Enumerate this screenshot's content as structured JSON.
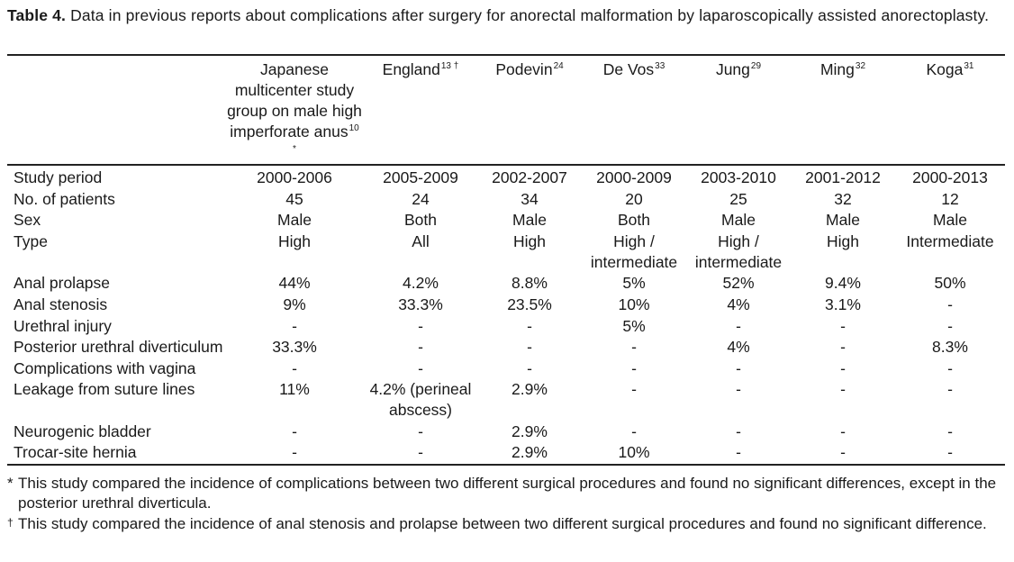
{
  "caption": {
    "label": "Table 4.",
    "text": "Data in previous reports about complications after surgery for anorectal malformation by laparoscopically assisted anorectoplasty."
  },
  "columns": [
    {
      "name": "Japanese multicenter study group on male high imperforate anus",
      "ref": "10 *"
    },
    {
      "name": "England",
      "ref": "13 †"
    },
    {
      "name": "Podevin",
      "ref": "24"
    },
    {
      "name": "De Vos",
      "ref": "33"
    },
    {
      "name": "Jung",
      "ref": "29"
    },
    {
      "name": "Ming",
      "ref": "32"
    },
    {
      "name": "Koga",
      "ref": "31"
    }
  ],
  "rows": [
    {
      "label": "Study period",
      "cells": [
        "2000-2006",
        "2005-2009",
        "2002-2007",
        "2000-2009",
        "2003-2010",
        "2001-2012",
        "2000-2013"
      ]
    },
    {
      "label": "No. of patients",
      "cells": [
        "45",
        "24",
        "34",
        "20",
        "25",
        "32",
        "12"
      ]
    },
    {
      "label": "Sex",
      "cells": [
        "Male",
        "Both",
        "Male",
        "Both",
        "Male",
        "Male",
        "Male"
      ]
    },
    {
      "label": "Type",
      "cells": [
        "High",
        "All",
        "High",
        "High / intermediate",
        "High / intermediate",
        "High",
        "Intermediate"
      ]
    },
    {
      "label": "Anal prolapse",
      "cells": [
        "44%",
        "4.2%",
        "8.8%",
        "5%",
        "52%",
        "9.4%",
        "50%"
      ]
    },
    {
      "label": "Anal stenosis",
      "cells": [
        "9%",
        "33.3%",
        "23.5%",
        "10%",
        "4%",
        "3.1%",
        "-"
      ]
    },
    {
      "label": "Urethral injury",
      "cells": [
        "-",
        "-",
        "-",
        "5%",
        "-",
        "-",
        "-"
      ]
    },
    {
      "label": "Posterior urethral diverticulum",
      "cells": [
        "33.3%",
        "-",
        "-",
        "-",
        "4%",
        "-",
        "8.3%"
      ]
    },
    {
      "label": "Complications with vagina",
      "cells": [
        "-",
        "-",
        "-",
        "-",
        "-",
        "-",
        "-"
      ]
    },
    {
      "label": "Leakage from suture lines",
      "cells": [
        "11%",
        "4.2% (perineal abscess)",
        "2.9%",
        "-",
        "-",
        "-",
        "-"
      ]
    },
    {
      "label": "Neurogenic bladder",
      "cells": [
        "-",
        "-",
        "2.9%",
        "-",
        "-",
        "-",
        "-"
      ]
    },
    {
      "label": "Trocar-site hernia",
      "cells": [
        "-",
        "-",
        "2.9%",
        "10%",
        "-",
        "-",
        "-"
      ]
    }
  ],
  "footnotes": [
    {
      "mark": "*",
      "text": "This study compared the incidence of complications between two different surgical procedures and found no significant differences, except in the posterior urethral diverticula."
    },
    {
      "mark": "†",
      "text": "This study compared the incidence of anal stenosis and prolapse between two different surgical procedures and found no significant difference."
    }
  ]
}
